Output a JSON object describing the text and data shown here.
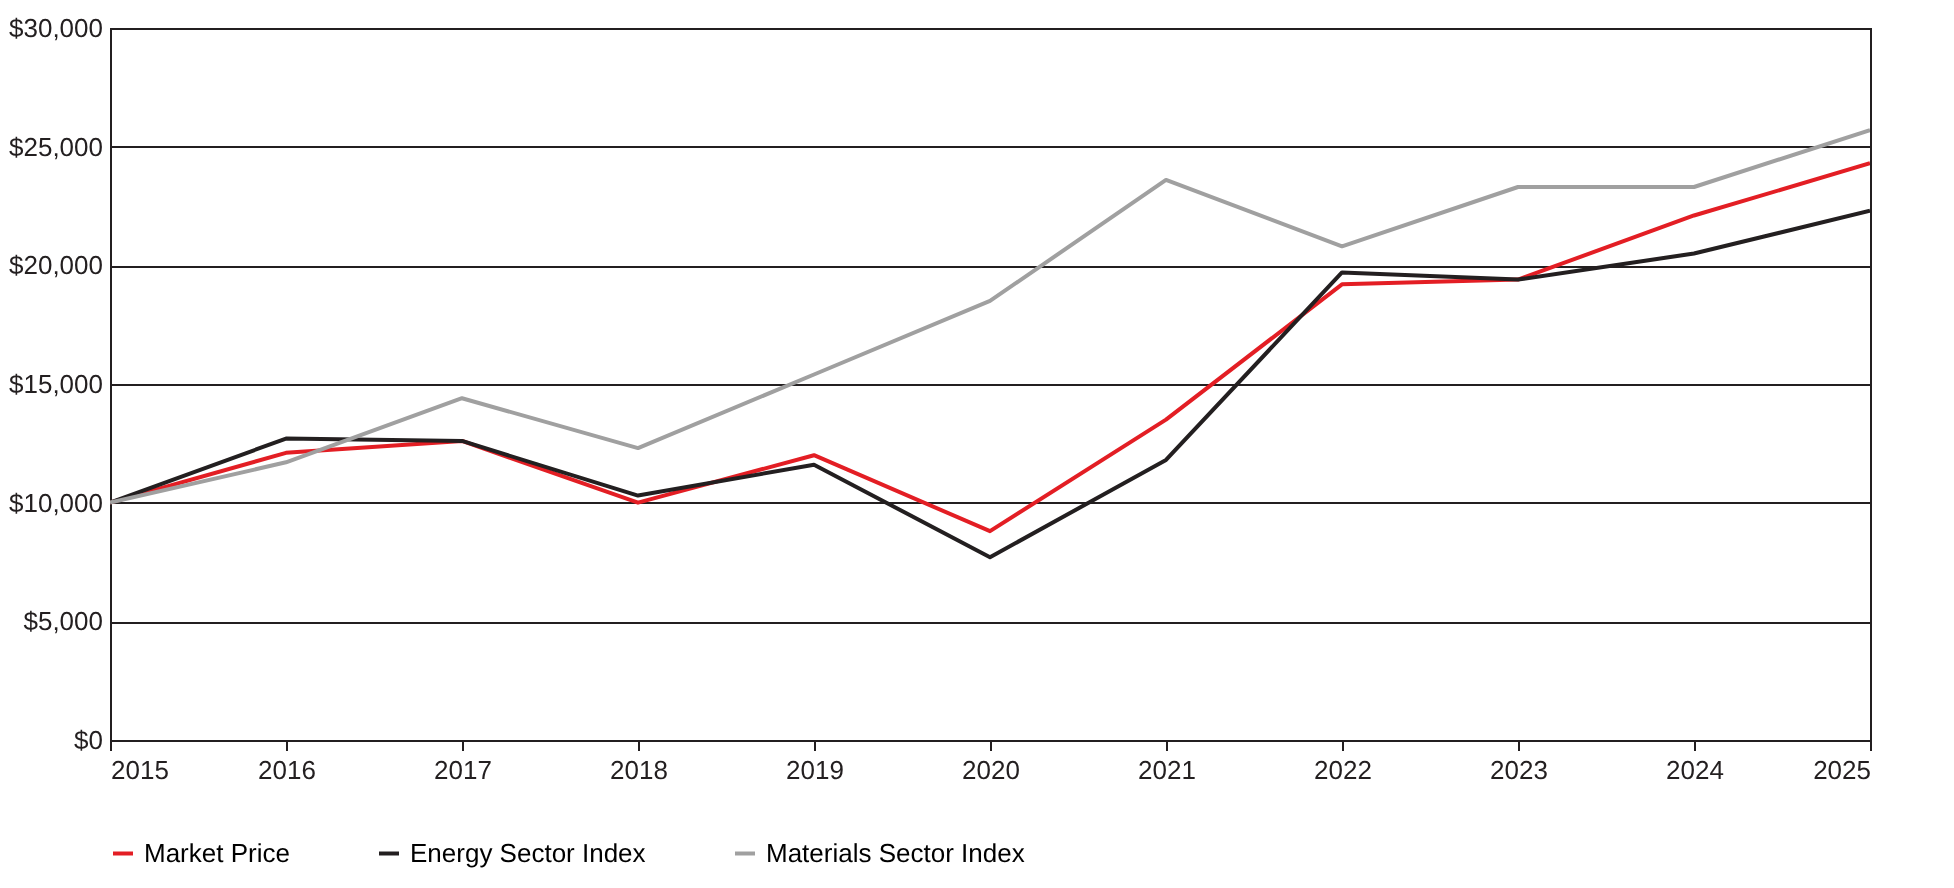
{
  "chart_data": {
    "type": "line",
    "x": [
      2015,
      2016,
      2017,
      2018,
      2019,
      2020,
      2021,
      2022,
      2023,
      2024,
      2025
    ],
    "series": [
      {
        "name": "Market Price",
        "color": "#e31e24",
        "values": [
          10000,
          12100,
          12600,
          10000,
          12000,
          8800,
          13500,
          19200,
          19400,
          22100,
          24300
        ]
      },
      {
        "name": "Energy Sector Index",
        "color": "#231f20",
        "values": [
          10000,
          12700,
          12600,
          10300,
          11600,
          7700,
          11800,
          19700,
          19400,
          20500,
          22300
        ]
      },
      {
        "name": "Materials Sector Index",
        "color": "#a0a0a0",
        "values": [
          10000,
          11700,
          14400,
          12300,
          15400,
          18500,
          23600,
          20800,
          23300,
          23300,
          25700
        ]
      }
    ],
    "xlim": [
      2015,
      2025
    ],
    "xticks": [
      2015,
      2016,
      2017,
      2018,
      2019,
      2020,
      2021,
      2022,
      2023,
      2024,
      2025
    ],
    "ylim": [
      0,
      30000
    ],
    "yticks": [
      {
        "value": 0,
        "label": "$0"
      },
      {
        "value": 5000,
        "label": "$5,000"
      },
      {
        "value": 10000,
        "label": "$10,000"
      },
      {
        "value": 15000,
        "label": "$15,000"
      },
      {
        "value": 20000,
        "label": "$20,000"
      },
      {
        "value": 25000,
        "label": "$25,000"
      },
      {
        "value": 30000,
        "label": "$30,000"
      }
    ],
    "grid": "y",
    "legend": "bottom",
    "line_style": "solid",
    "marker": "none"
  }
}
